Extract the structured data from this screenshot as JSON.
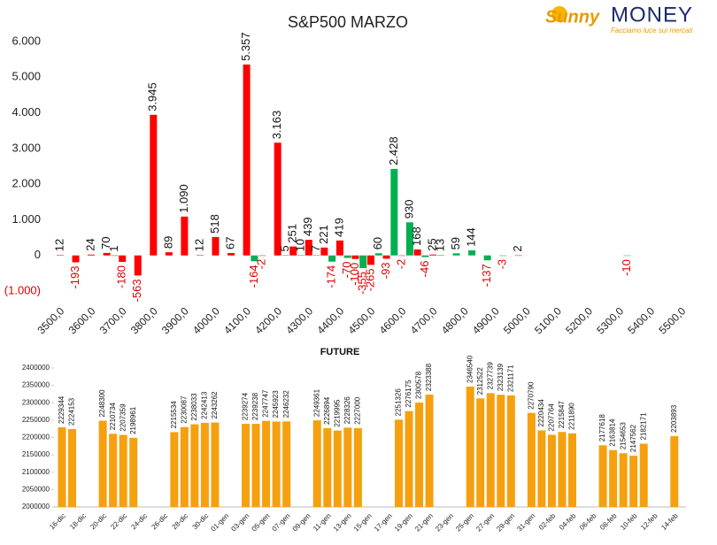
{
  "logo": {
    "brand": "Sunny",
    "name": "MONEY",
    "tagline": "Facciamo luce sui mercati"
  },
  "chart_data": [
    {
      "type": "bar",
      "title": "S&P500 MARZO",
      "categories": [
        "3500,0",
        null,
        null,
        null,
        "3600,0",
        null,
        null,
        null,
        "3700,0",
        null,
        null,
        null,
        "3800,0",
        null,
        null,
        null,
        "3900,0",
        null,
        null,
        null,
        "4000,0",
        null,
        null,
        null,
        "4100,0",
        null,
        null,
        null,
        "4200,0",
        null,
        null,
        null,
        "4300,0",
        null,
        null,
        null,
        "4400,0",
        null,
        null,
        null,
        "4500,0",
        null,
        null,
        null,
        "4600,0",
        null,
        null,
        null,
        "4700,0",
        null,
        null,
        null,
        "4800,0",
        null,
        null,
        null,
        "4900,0",
        null,
        null,
        null,
        "5000,0",
        null,
        null,
        null,
        "5100,0",
        null,
        null,
        null,
        "5200,0",
        null,
        null,
        null,
        "5300,0",
        null,
        null,
        null,
        "5400,0",
        null,
        null,
        null,
        "5500,0"
      ],
      "values": [
        12,
        null,
        -193,
        null,
        24,
        null,
        70,
        1,
        -180,
        null,
        -563,
        null,
        3945,
        null,
        89,
        null,
        1090,
        null,
        12,
        null,
        518,
        null,
        67,
        null,
        5357,
        -164,
        -2,
        null,
        3163,
        5,
        251,
        10,
        439,
        7,
        221,
        -174,
        419,
        -70,
        -100,
        -355,
        -265,
        60,
        -93,
        2428,
        -2,
        930,
        168,
        -46,
        25,
        13,
        null,
        59,
        null,
        144,
        null,
        -137,
        null,
        -3,
        null,
        2,
        null,
        null,
        null,
        null,
        null,
        null,
        null,
        null,
        null,
        null,
        null,
        null,
        null,
        -10,
        null,
        null,
        null,
        null,
        null,
        null,
        null
      ],
      "value_labels": [
        "12",
        null,
        "-193",
        null,
        "24",
        null,
        "70",
        "1",
        "-180",
        null,
        "-563",
        null,
        "3.945",
        null,
        "89",
        null,
        "1.090",
        null,
        "12",
        null,
        "518",
        null,
        "67",
        null,
        "5.357",
        "-164",
        "-2",
        null,
        "3.163",
        "5",
        "251",
        "10",
        "439",
        "7",
        "221",
        "-174",
        "419",
        "-70",
        "-100",
        "-355",
        "-265",
        "60",
        "-93",
        "2.428",
        "-2",
        "930",
        "168",
        "-46",
        "25",
        "13",
        null,
        "59",
        null,
        "144",
        null,
        "-137",
        null,
        "-3",
        null,
        "2",
        null,
        null,
        null,
        null,
        null,
        null,
        null,
        null,
        null,
        null,
        null,
        null,
        null,
        "-10",
        null,
        null,
        null,
        null,
        null,
        null,
        null
      ],
      "colors": [
        "#ff0000",
        null,
        "#ff0000",
        null,
        "#ff0000",
        null,
        "#ff0000",
        "#ff0000",
        "#ff0000",
        null,
        "#ff0000",
        null,
        "#ff0000",
        null,
        "#ff0000",
        null,
        "#ff0000",
        null,
        "#ff0000",
        null,
        "#ff0000",
        null,
        "#ff0000",
        null,
        "#ff0000",
        "#00b050",
        "#ff0000",
        null,
        "#ff0000",
        "#00b050",
        "#ff0000",
        "#00b050",
        "#ff0000",
        "#00b050",
        "#ff0000",
        "#00b050",
        "#ff0000",
        "#00b050",
        "#ff0000",
        "#00b050",
        "#ff0000",
        "#00b050",
        "#ff0000",
        "#00b050",
        "#ff0000",
        "#00b050",
        "#ff0000",
        "#00b050",
        "#ff0000",
        "#00b050",
        null,
        "#00b050",
        null,
        "#00b050",
        null,
        "#00b050",
        null,
        "#00b050",
        null,
        "#ff0000",
        null,
        null,
        null,
        null,
        null,
        null,
        null,
        null,
        null,
        null,
        null,
        null,
        null,
        "#00b050",
        null,
        null,
        null,
        null,
        null,
        null,
        null
      ],
      "ylim": [
        -1000,
        6000
      ],
      "yticks": [
        {
          "value": -1000,
          "label": "(1.000)"
        },
        0,
        {
          "value": 1000,
          "label": "1.000"
        },
        {
          "value": 2000,
          "label": "2.000"
        },
        {
          "value": 3000,
          "label": "3.000"
        },
        {
          "value": 4000,
          "label": "4.000"
        },
        {
          "value": 5000,
          "label": "5.000"
        },
        {
          "value": 6000,
          "label": "6.000"
        }
      ]
    },
    {
      "type": "bar",
      "title": "FUTURE",
      "color": "#f5a00f",
      "categories": [
        "16-dic",
        null,
        "18-dic",
        null,
        "20-dic",
        null,
        "22-dic",
        null,
        "24-dic",
        null,
        "26-dic",
        null,
        "28-dic",
        null,
        "30-dic",
        null,
        "01-gen",
        null,
        "03-gen",
        null,
        "05-gen",
        null,
        "07-gen",
        null,
        "09-gen",
        null,
        "11-gen",
        null,
        "13-gen",
        null,
        "15-gen",
        null,
        "17-gen",
        null,
        "19-gen",
        null,
        "21-gen",
        null,
        "23-gen",
        null,
        "25-gen",
        null,
        "27-gen",
        null,
        "29-gen",
        null,
        "31-gen",
        null,
        "02-feb",
        null,
        "04-feb",
        null,
        "06-feb",
        null,
        "08-feb",
        null,
        "10-feb",
        null,
        "12-feb",
        null,
        "14-feb"
      ],
      "values": [
        2229344,
        2224153,
        null,
        null,
        2248300,
        2210734,
        2207359,
        2198961,
        null,
        null,
        null,
        2215534,
        2230087,
        2238033,
        2242413,
        2243262,
        null,
        null,
        2239274,
        2239238,
        2247747,
        2245923,
        2246232,
        null,
        null,
        2249361,
        2226894,
        2219995,
        2228326,
        2227000,
        null,
        null,
        null,
        2251326,
        2276175,
        2300578,
        2323388,
        null,
        null,
        null,
        2346540,
        2312522,
        2327739,
        2323139,
        2321171,
        null,
        2270790,
        2220434,
        2207764,
        2215847,
        2211890,
        null,
        null,
        2177618,
        2163814,
        2154653,
        2147562,
        2182171,
        null,
        null,
        2203893
      ],
      "ylim": [
        2000000,
        2400000
      ],
      "yticks": [
        2000000,
        2050000,
        2100000,
        2150000,
        2200000,
        2250000,
        2300000,
        2350000,
        2400000
      ]
    }
  ]
}
